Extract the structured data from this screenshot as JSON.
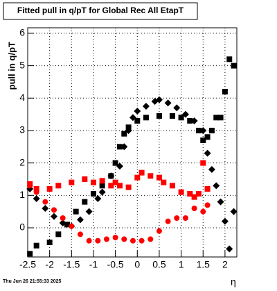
{
  "chart_data": {
    "type": "scatter",
    "title": "Fitted pull in q/pT for Global Rec All EtapT",
    "ylabel": "pull in q/pT",
    "xlabel": "η",
    "timestamp": "Thu Jun 26 21:55:33 2025",
    "xlim": [
      -2.5,
      2.27
    ],
    "ylim": [
      -0.9,
      6.17
    ],
    "xticks": [
      -2.5,
      -2,
      -1.5,
      -1,
      -0.5,
      0,
      0.5,
      1,
      1.5,
      2
    ],
    "yticks": [
      0,
      1,
      2,
      3,
      4,
      5,
      6
    ],
    "grid": true,
    "series": [
      {
        "color": "#000000",
        "marker": "square",
        "x": [
          -2.45,
          -2.3,
          -2.0,
          -1.8,
          -1.6,
          -1.4,
          -1.2,
          -1.0,
          -0.8,
          -0.6,
          -0.5,
          -0.4,
          -0.3,
          -0.2,
          0,
          0.2,
          0.5,
          0.8,
          1.0,
          1.2,
          1.4,
          1.5,
          1.6,
          1.7,
          1.8,
          1.9,
          2.0,
          2.1,
          2.2
        ],
        "values": [
          -0.8,
          -0.55,
          -0.45,
          -0.2,
          0.1,
          0.5,
          0.8,
          1.05,
          1.3,
          1.6,
          2.0,
          2.5,
          2.9,
          3.1,
          3.3,
          3.4,
          3.45,
          3.45,
          3.4,
          3.3,
          3.0,
          2.7,
          2.8,
          3.0,
          3.4,
          3.4,
          4.2,
          5.2,
          5.0
        ]
      },
      {
        "color": "#000000",
        "marker": "diamond",
        "x": [
          -2.45,
          -2.3,
          -2.1,
          -1.9,
          -1.7,
          -1.5,
          -1.3,
          -1.1,
          -0.9,
          -0.8,
          -0.6,
          -0.4,
          -0.3,
          -0.2,
          -0.1,
          0,
          0.2,
          0.4,
          0.5,
          0.7,
          0.9,
          1.1,
          1.3,
          1.5,
          1.6,
          1.7,
          1.8,
          1.9,
          2.0,
          2.1,
          2.2
        ],
        "values": [
          1.2,
          0.9,
          0.6,
          0.35,
          0.15,
          0.05,
          0.25,
          0.5,
          0.9,
          1.1,
          1.6,
          1.9,
          2.5,
          3.0,
          3.4,
          3.6,
          3.75,
          3.9,
          3.95,
          3.85,
          3.7,
          3.5,
          3.3,
          3.0,
          2.3,
          1.8,
          1.3,
          0.8,
          0.2,
          -0.65,
          0.5
        ]
      },
      {
        "color": "#ff0000",
        "marker": "square",
        "x": [
          -2.45,
          -2.3,
          -2.0,
          -1.8,
          -1.5,
          -1.2,
          -1.0,
          -0.8,
          -0.6,
          -0.5,
          -0.4,
          -0.2,
          0,
          0.1,
          0.3,
          0.5,
          0.6,
          0.8,
          1.0,
          1.2,
          1.3,
          1.4,
          1.5,
          1.6
        ],
        "values": [
          1.35,
          1.2,
          1.2,
          1.3,
          1.4,
          1.5,
          1.4,
          1.45,
          1.3,
          1.4,
          1.3,
          1.25,
          1.55,
          1.7,
          1.6,
          1.55,
          1.4,
          1.3,
          1.1,
          1.05,
          0.95,
          1.05,
          2.0,
          1.2
        ]
      },
      {
        "color": "#ff0000",
        "marker": "circle",
        "x": [
          -2.45,
          -2.3,
          -2.1,
          -1.9,
          -1.7,
          -1.5,
          -1.3,
          -1.1,
          -0.9,
          -0.7,
          -0.5,
          -0.3,
          -0.1,
          0.1,
          0.3,
          0.5,
          0.7,
          0.9,
          1.1,
          1.3,
          1.5,
          1.6
        ],
        "values": [
          1.3,
          1.1,
          0.8,
          0.55,
          0.3,
          0.05,
          -0.2,
          -0.4,
          -0.4,
          -0.35,
          -0.3,
          -0.35,
          -0.4,
          -0.4,
          -0.35,
          -0.1,
          0.2,
          0.3,
          0.3,
          0.6,
          0.5,
          0.7
        ]
      }
    ]
  }
}
